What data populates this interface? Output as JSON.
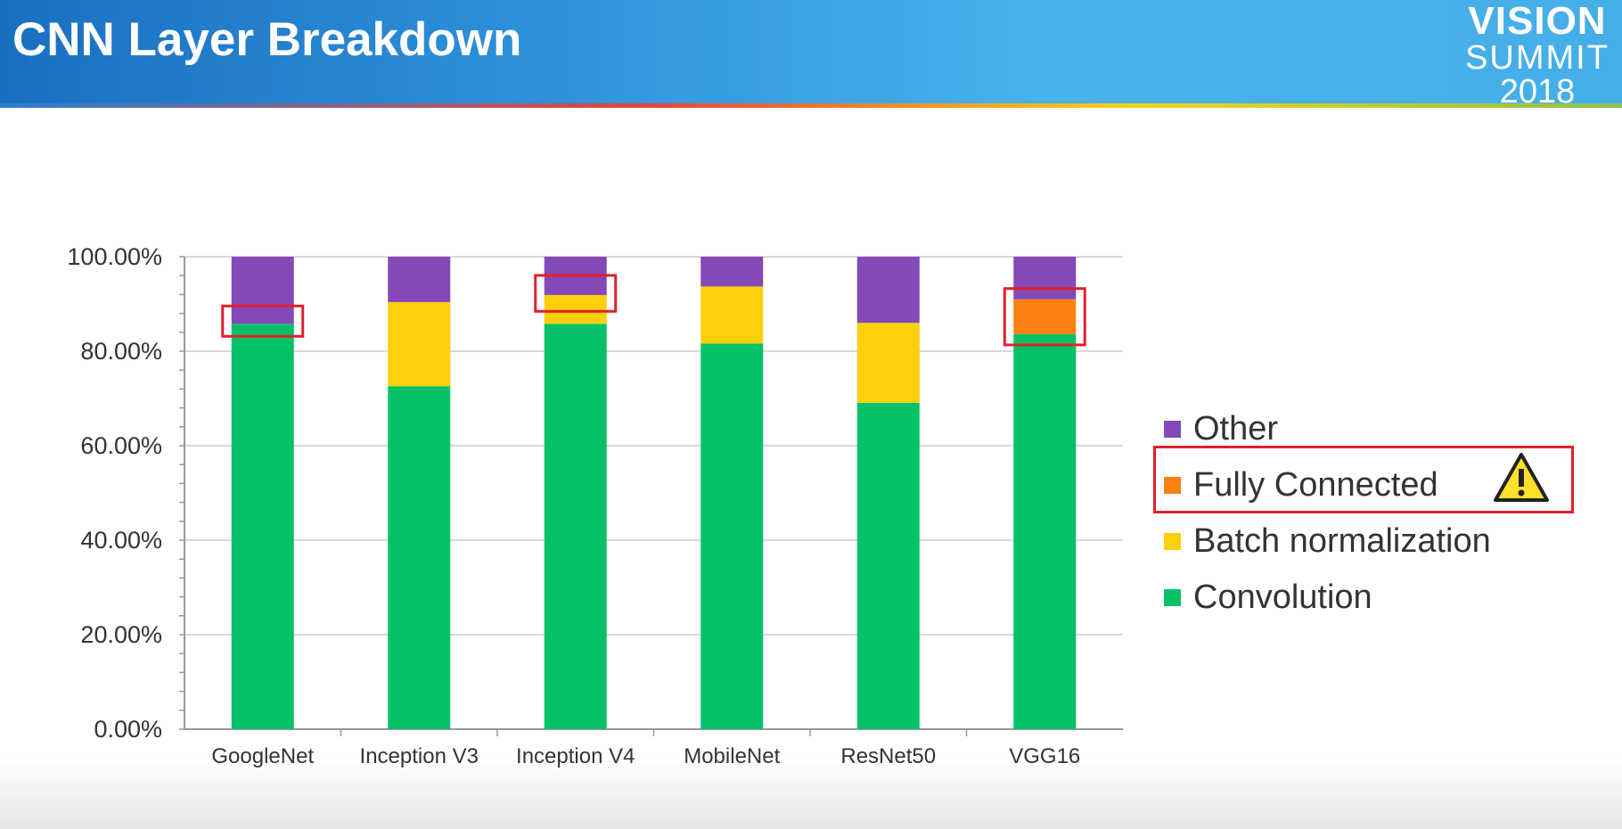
{
  "header": {
    "title": "CNN Layer Breakdown",
    "logo": {
      "line1": "VISION",
      "line2": "SUMMIT",
      "line3": "2018"
    }
  },
  "chart_data": {
    "type": "bar",
    "stacked": true,
    "title": "CNN Layer Breakdown",
    "categories": [
      "GoogleNet",
      "Inception V3",
      "Inception V4",
      "MobileNet",
      "ResNet50",
      "VGG16"
    ],
    "series": [
      {
        "name": "Convolution",
        "color": "#05c269",
        "values": [
          85.8,
          72.6,
          85.8,
          81.6,
          69.1,
          83.6
        ]
      },
      {
        "name": "Batch normalization",
        "color": "#fecf0a",
        "values": [
          0,
          17.8,
          6.1,
          12.1,
          16.9,
          0
        ]
      },
      {
        "name": "Fully Connected",
        "color": "#fb8112",
        "values": [
          0,
          0,
          0,
          0,
          0,
          7.4
        ]
      },
      {
        "name": "Other",
        "color": "#8448b7",
        "values": [
          14.2,
          9.6,
          8.1,
          6.3,
          14.0,
          9.0
        ]
      }
    ],
    "ylim": [
      0,
      100
    ],
    "yticks": [
      "0.00%",
      "20.00%",
      "40.00%",
      "60.00%",
      "80.00%",
      "100.00%"
    ],
    "legend_order": [
      "Other",
      "Fully Connected",
      "Batch normalization",
      "Convolution"
    ],
    "legend_position": "right",
    "highlighted_categories": [
      "GoogleNet",
      "Inception V4",
      "VGG16"
    ],
    "highlighted_legend": "Fully Connected",
    "grid": true
  }
}
